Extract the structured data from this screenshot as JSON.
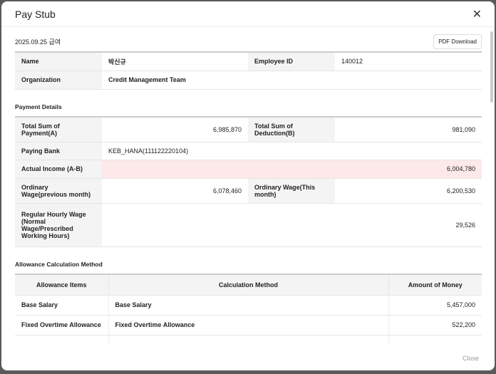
{
  "title": "Pay Stub",
  "date_label": "2025.09.25 급여",
  "pdf_button": "PDF Download",
  "employee": {
    "name_label": "Name",
    "name": "박신규",
    "id_label": "Employee ID",
    "id": "140012",
    "org_label": "Organization",
    "org": "Credit Management Team"
  },
  "payment": {
    "section": "Payment Details",
    "total_payment_label": "Total Sum of Payment(A)",
    "total_payment": "6,985,870",
    "total_deduction_label": "Total Sum of Deduction(B)",
    "total_deduction": "981,090",
    "bank_label": "Paying Bank",
    "bank": "KEB_HANA(111122220104)",
    "actual_label": "Actual Income (A-B)",
    "actual": "6,004,780",
    "ow_prev_label": "Ordinary Wage(previous month)",
    "ow_prev": "6,078,460",
    "ow_this_label": "Ordinary Wage(This month)",
    "ow_this": "6,200,530",
    "hourly_label": "Regular Hourly Wage (Normal Wage/Prescribed Working Hours)",
    "hourly": "29,526"
  },
  "allowance": {
    "section": "Allowance Calculation Method",
    "headers": [
      "Allowance Items",
      "Calculation Method",
      "Amount of Money"
    ],
    "rows": [
      [
        "Base Salary",
        "Base Salary",
        "5,457,000"
      ],
      [
        "Fixed Overtime Allowance",
        "Fixed Overtime Allowance",
        "522,200"
      ]
    ]
  },
  "close_button": "Close"
}
